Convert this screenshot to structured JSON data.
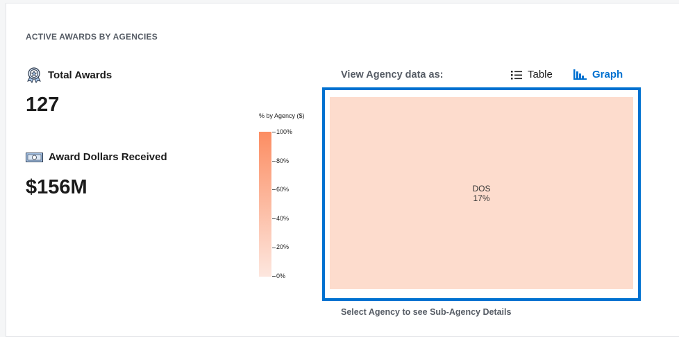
{
  "section_title": "ACTIVE AWARDS BY AGENCIES",
  "stats": [
    {
      "label": "Total Awards",
      "value": "127",
      "icon": "award-medal-icon"
    },
    {
      "label": "Award Dollars Received",
      "value": "$156M",
      "icon": "money-bill-icon"
    }
  ],
  "view": {
    "label": "View Agency data as:",
    "options": [
      {
        "label": "Table",
        "icon": "list-icon",
        "active": false
      },
      {
        "label": "Graph",
        "icon": "bar-chart-icon",
        "active": true
      }
    ]
  },
  "legend": {
    "title": "% by Agency ($)",
    "ticks": [
      "100%",
      "80%",
      "60%",
      "40%",
      "20%",
      "0%"
    ],
    "colors": {
      "high": "#fc8d62",
      "low": "#fde7df"
    }
  },
  "treemap": {
    "cells": [
      {
        "name": "DOS",
        "percent": "17%",
        "color": "#fddccd"
      }
    ],
    "border_color": "#0071d0"
  },
  "footnote": "Select Agency to see Sub-Agency Details"
}
